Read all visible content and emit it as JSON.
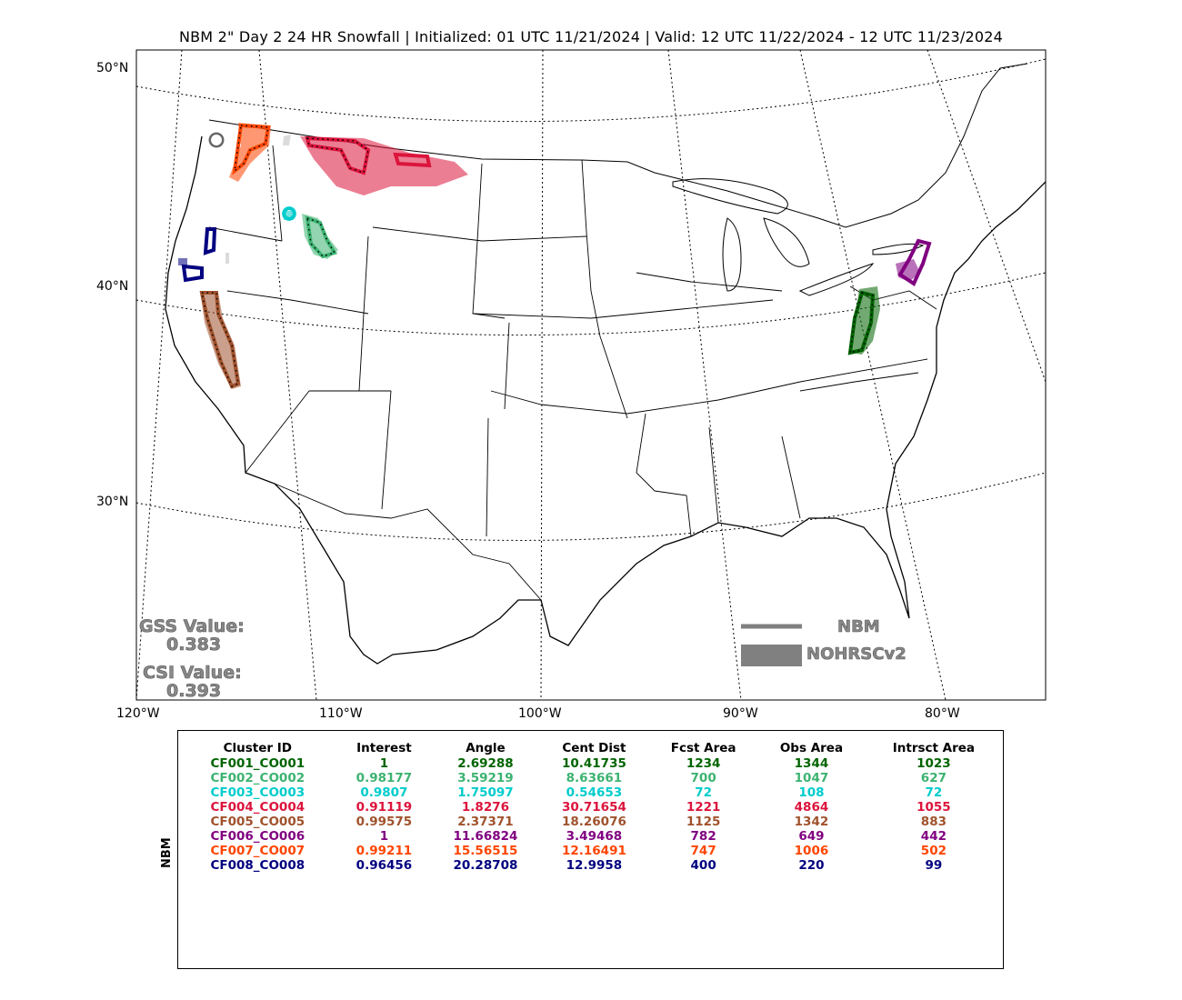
{
  "title": "NBM 2\" Day 2 24 HR Snowfall | Initialized: 01 UTC 11/21/2024 | Valid: 12 UTC 11/22/2024 - 12 UTC 11/23/2024",
  "lat_labels": [
    "50°N",
    "40°N",
    "30°N"
  ],
  "lon_labels": [
    "120°W",
    "110°W",
    "100°W",
    "90°W",
    "80°W"
  ],
  "gss": {
    "label": "GSS Value:",
    "value": "0.383"
  },
  "csi": {
    "label": "CSI Value:",
    "value": "0.393"
  },
  "legend": {
    "forecast": "NBM",
    "observed": "NOHRSCv2"
  },
  "side_label": "NBM",
  "table": {
    "headers": [
      "Cluster ID",
      "Interest",
      "Angle",
      "Cent Dist",
      "Fcst Area",
      "Obs Area",
      "Intrsct Area"
    ],
    "rows": [
      {
        "color": "#006400",
        "cells": [
          "CF001_CO001",
          "1",
          "2.69288",
          "10.41735",
          "1234",
          "1344",
          "1023"
        ]
      },
      {
        "color": "#3cb371",
        "cells": [
          "CF002_CO002",
          "0.98177",
          "3.59219",
          "8.63661",
          "700",
          "1047",
          "627"
        ]
      },
      {
        "color": "#00cccc",
        "cells": [
          "CF003_CO003",
          "0.9807",
          "1.75097",
          "0.54653",
          "72",
          "108",
          "72"
        ]
      },
      {
        "color": "#dc143c",
        "cells": [
          "CF004_CO004",
          "0.91119",
          "1.8276",
          "30.71654",
          "1221",
          "4864",
          "1055"
        ]
      },
      {
        "color": "#a0522d",
        "cells": [
          "CF005_CO005",
          "0.99575",
          "2.37371",
          "18.26076",
          "1125",
          "1342",
          "883"
        ]
      },
      {
        "color": "#800080",
        "cells": [
          "CF006_CO006",
          "1",
          "11.66824",
          "3.49468",
          "782",
          "649",
          "442"
        ]
      },
      {
        "color": "#ff4500",
        "cells": [
          "CF007_CO007",
          "0.99211",
          "15.56515",
          "12.16491",
          "747",
          "1006",
          "502"
        ]
      },
      {
        "color": "#000080",
        "cells": [
          "CF008_CO008",
          "0.96456",
          "20.28708",
          "12.9958",
          "400",
          "220",
          "99"
        ]
      }
    ]
  }
}
